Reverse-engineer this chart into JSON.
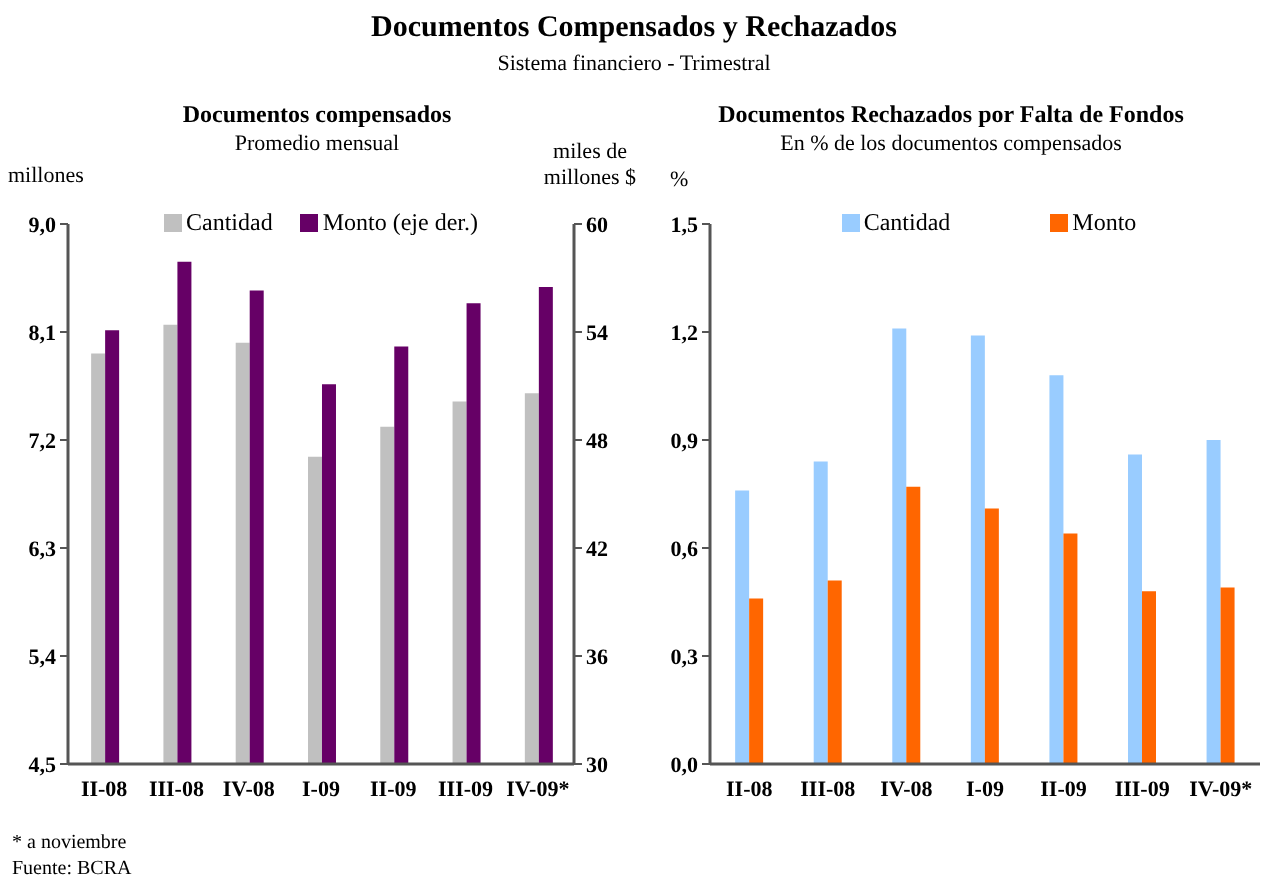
{
  "chart_data": [
    {
      "type": "bar",
      "title": "Documentos compensados",
      "subtitle": "Promedio mensual",
      "ylabel": "millones",
      "y2label": "miles de millones $",
      "annotations": [
        "Documentos Compensados y Rechazados",
        "Sistema financiero - Trimestral",
        "* a noviembre",
        "Fuente: BCRA"
      ],
      "categories": [
        "II-08",
        "III-08",
        "IV-08",
        "I-09",
        "II-09",
        "III-09",
        "IV-09*"
      ],
      "series": [
        {
          "name": "Cantidad",
          "color": "#c0c0c0",
          "values": [
            7.92,
            8.16,
            8.01,
            7.06,
            7.31,
            7.52,
            7.59
          ]
        },
        {
          "name": "Monto (eje der.)",
          "color": "#660066",
          "axis": "y2",
          "values": [
            54.1,
            57.9,
            56.3,
            51.1,
            53.2,
            55.6,
            56.5
          ]
        }
      ],
      "ylim": [
        4.5,
        9.0
      ],
      "yticks": [
        {
          "value": 4.5,
          "label": "4,5"
        },
        {
          "value": 5.4,
          "label": "5,4"
        },
        {
          "value": 6.3,
          "label": "6,3"
        },
        {
          "value": 7.2,
          "label": "7,2"
        },
        {
          "value": 8.1,
          "label": "8,1"
        },
        {
          "value": 9.0,
          "label": "9,0"
        }
      ],
      "y2lim": [
        30,
        60
      ],
      "y2ticks": [
        30,
        36,
        42,
        48,
        54,
        60
      ],
      "legend": "top",
      "grid": false
    },
    {
      "type": "bar",
      "title": "Documentos Rechazados por Falta de Fondos",
      "subtitle": "En % de los documentos compensados",
      "ylabel": "%",
      "categories": [
        "II-08",
        "III-08",
        "IV-08",
        "I-09",
        "II-09",
        "III-09",
        "IV-09*"
      ],
      "series": [
        {
          "name": "Cantidad",
          "color": "#99ccff",
          "values": [
            0.76,
            0.84,
            1.21,
            1.19,
            1.08,
            0.86,
            0.9
          ]
        },
        {
          "name": "Monto",
          "color": "#ff6600",
          "values": [
            0.46,
            0.51,
            0.77,
            0.71,
            0.64,
            0.48,
            0.49
          ]
        }
      ],
      "ylim": [
        0,
        1.5
      ],
      "yticks": [
        {
          "value": 0,
          "label": "0,0"
        },
        {
          "value": 0.3,
          "label": "0,3"
        },
        {
          "value": 0.6,
          "label": "0,6"
        },
        {
          "value": 0.9,
          "label": "0,9"
        },
        {
          "value": 1.2,
          "label": "1,2"
        },
        {
          "value": 1.5,
          "label": "1,5"
        }
      ],
      "legend": "top",
      "grid": false
    }
  ]
}
